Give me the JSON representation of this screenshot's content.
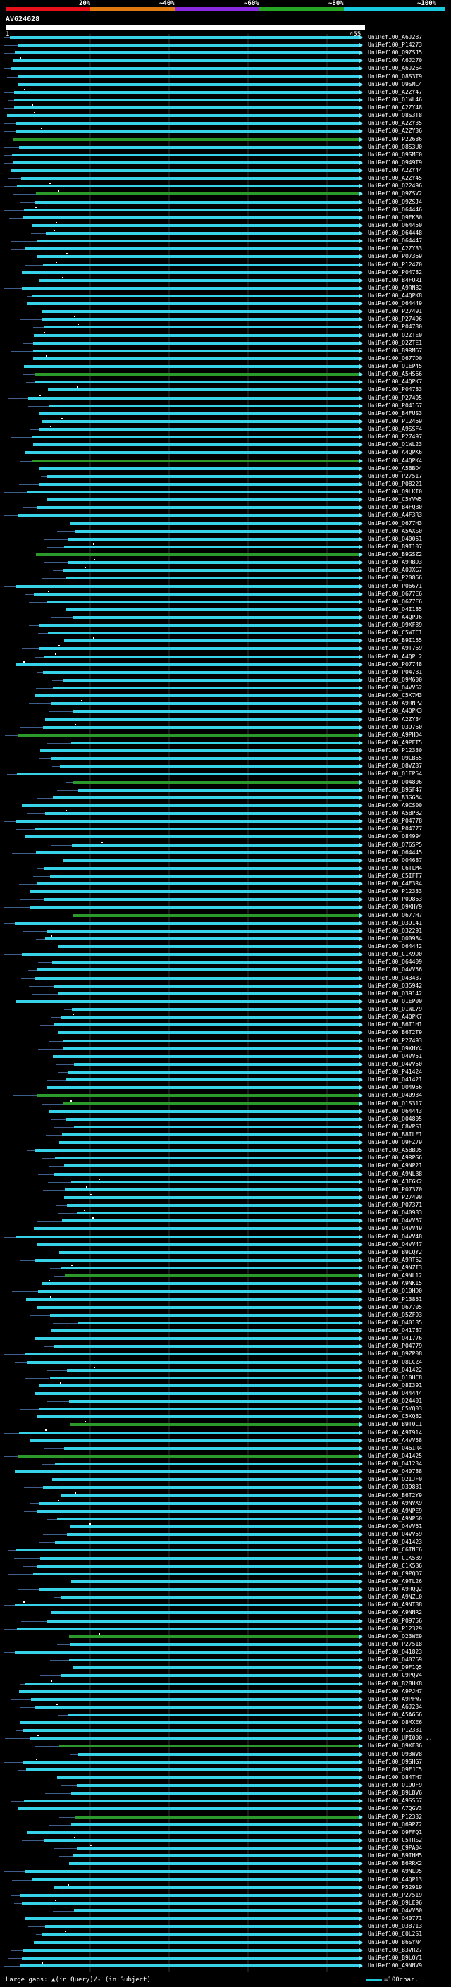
{
  "legend": {
    "ticks": [
      "20%",
      "~40%",
      "~60%",
      "~80%",
      "~100%"
    ],
    "colors": [
      "#e8101a",
      "#e07a10",
      "#8a2be2",
      "#27a623",
      "#18c9e0"
    ]
  },
  "query": {
    "name": "AV624628",
    "start": "1",
    "end": "455"
  },
  "colors": {
    "full": "#38d2e8",
    "partial": "#2b9a2b",
    "line": "#3d5d8a"
  },
  "hits": [
    "A6J287",
    "P14273",
    "Q9ZSJ5",
    "A6J270",
    "A6J264",
    "Q8S3T9",
    "Q9SML4",
    "A2ZY47",
    "Q1WL46",
    "A2ZY48",
    "Q8S3T8",
    "A2ZY35",
    "A2ZY36",
    "P22686",
    "Q8S3U0",
    "Q9SME0",
    "Q949T9",
    "A2ZY44",
    "A2ZY45",
    "Q22496",
    "Q9ZSV2",
    "Q9ZSJ4",
    "O64446",
    "Q9FKB0",
    "O64450",
    "O64448",
    "O64447",
    "A2ZY33",
    "P07369",
    "P12470",
    "P04782",
    "B4FURI",
    "A9RN82",
    "A4QPK8",
    "O64449",
    "P27491",
    "P27496",
    "P04780",
    "Q2ZTE0",
    "Q2ZTE1",
    "B9RM67",
    "Q677D0",
    "Q1EP45",
    "A5HS66",
    "A4QPK7",
    "P04783",
    "P27495",
    "P04167",
    "B4FUS3",
    "P12469",
    "A9SSF4",
    "P27497",
    "Q1WL23",
    "A4QPK6",
    "A4QPK4",
    "A5BBD4",
    "P27517",
    "P08221",
    "Q9LKI0",
    "C5YVW5",
    "B4FQB0",
    "A4F3R3",
    "Q677H3",
    "A5AXS0",
    "Q40061",
    "B9I107",
    "B9GSZ2",
    "A9RBD3",
    "A0JXG7",
    "P20866",
    "P06671",
    "Q677E6",
    "Q677F6",
    "O4I185",
    "A4QPJ6",
    "Q9XF89",
    "C5WTC1",
    "B9I155",
    "A9T769",
    "A4QPL2",
    "P07748",
    "P04781",
    "Q9M600",
    "O4VV52",
    "C5X7M3",
    "A9RNP2",
    "A4QPK3",
    "A2ZY34",
    "Q39760",
    "A9PHD4",
    "A9PET5",
    "P12330",
    "Q9CB55",
    "Q8VZ87",
    "Q1EP54",
    "O04806",
    "B9SF47",
    "B3GG64",
    "A9CS00",
    "A5BPB2",
    "P04778",
    "P04777",
    "Q84994",
    "Q76SP5",
    "O64445",
    "O04687",
    "C6TLM4",
    "C5IFT7",
    "A4F3R4",
    "P12333",
    "P09863",
    "Q9XHY9",
    "Q677H7",
    "Q39141",
    "Q32291",
    "Q00984",
    "O64442",
    "C1K9D0",
    "O64409",
    "O4VV56",
    "O43437",
    "Q35942",
    "Q39142",
    "Q1EP00",
    "Q1WL79",
    "A4QPK7",
    "B6T1H1",
    "B6T2T9",
    "P27493",
    "Q9XHY4",
    "Q4VV51",
    "Q4VV50",
    "P41424",
    "Q41421",
    "O04956",
    "O40934",
    "Q1S317",
    "O64443",
    "O04805",
    "C8VPS1",
    "B8ILF1",
    "Q9FZ79",
    "A5BBD5",
    "A9RPG6",
    "A9NP21",
    "A9NLB8",
    "A3FGK2",
    "P07370",
    "P27490",
    "P07371",
    "O40983",
    "Q4VV57",
    "Q4VV49",
    "Q4VV48",
    "Q4VV47",
    "B9LQY2",
    "A9RT62",
    "A9NZI3",
    "A9NL12",
    "A9NK15",
    "Q10HD0",
    "P13851",
    "Q67705",
    "Q5ZF93",
    "O40185",
    "O41787",
    "Q41776",
    "P04779",
    "Q9ZP08",
    "Q8LCZ4",
    "O41422",
    "Q10HC8",
    "Q8I391",
    "O44444",
    "Q24401",
    "C5YQ03",
    "C5XQ82",
    "B9T0C1",
    "A9T914",
    "A4VV58",
    "Q46IR4",
    "O41425",
    "O41234",
    "O40788",
    "Q2IJF0",
    "Q39831",
    "B6T2Y9",
    "A9NVX9",
    "A9NPE9",
    "A9NP50",
    "Q4VV61",
    "Q4VV59",
    "O41423",
    "C6TNE6",
    "C1K5B9",
    "C1K5B6",
    "C9PQD7",
    "A9TL26",
    "A9RQQ2",
    "A9NZL0",
    "A9NT88",
    "A9NNR2",
    "P09756",
    "P12329",
    "Q23WE9",
    "P27518",
    "O41823",
    "Q40769",
    "D9F1Q5",
    "C9PQV4",
    "B2BHK8",
    "A9PJH7",
    "A9PFW7",
    "A6J234",
    "A5AG66",
    "Q8MXE6",
    "P12331",
    "UPI000...",
    "Q9XF86",
    "Q93WV8",
    "Q9SHG7",
    "Q9FJC5",
    "Q84TH7",
    "Q19UF9",
    "B9LBV6",
    "A9SS57",
    "A7QGV3",
    "P12332",
    "Q69P72",
    "Q9FFQ1",
    "C5TRS2",
    "C9PA04",
    "B9IHM5",
    "B6RRX2",
    "A9NLD5",
    "A4QP13",
    "P52919",
    "P27519",
    "Q9LE96",
    "Q4VV60",
    "O40771",
    "O38713",
    "C0L2S1",
    "B6SYN4",
    "B3VR27",
    "B9LQY1",
    "A9NNV9"
  ],
  "footer": {
    "left": "Large gaps: ▲(in Query)/- (in Subject)",
    "right": "=100char."
  }
}
